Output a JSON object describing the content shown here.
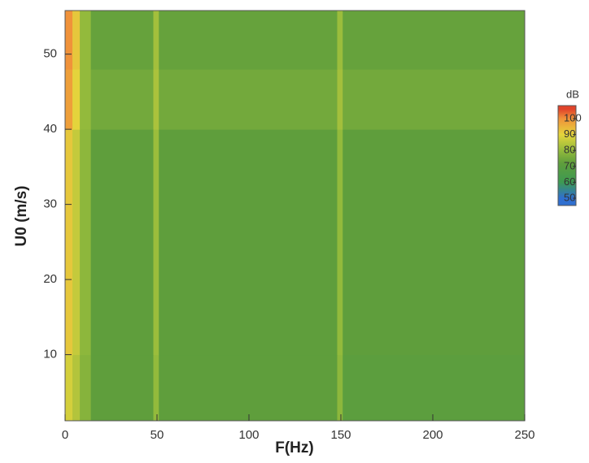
{
  "chart_data": {
    "type": "heatmap",
    "x_label": "F(Hz)",
    "y_label": "U0 (m/s)",
    "xlim": [
      0,
      250
    ],
    "xticks": [
      0,
      50,
      100,
      150,
      200,
      250
    ],
    "ylim": [
      1.2,
      55.8
    ],
    "yticks": [
      10,
      20,
      30,
      40,
      50
    ],
    "x_edges": [
      0,
      4,
      8,
      14,
      48,
      51,
      148,
      151,
      250
    ],
    "y_edges": [
      1.2,
      10,
      40,
      48,
      55.8
    ],
    "values": [
      [
        88,
        84,
        78,
        72,
        80,
        72,
        79,
        71
      ],
      [
        92,
        86,
        79,
        72,
        81,
        72,
        80,
        72
      ],
      [
        98,
        90,
        80,
        75,
        83,
        75,
        82,
        75
      ],
      [
        100,
        92,
        80,
        73,
        82,
        73,
        81,
        73
      ]
    ],
    "colorbar_title": "dB",
    "clim": [
      45.4,
      108.2
    ],
    "colorbar_ticks": [
      50,
      60,
      70,
      80,
      90,
      100
    ],
    "colorscale": [
      [
        50,
        "#2f6fd0"
      ],
      [
        60,
        "#3d9a52"
      ],
      [
        72,
        "#5f9e3c"
      ],
      [
        80,
        "#93ba3c"
      ],
      [
        90,
        "#e4d43c"
      ],
      [
        100,
        "#f0923a"
      ],
      [
        106,
        "#e0432a"
      ]
    ]
  }
}
